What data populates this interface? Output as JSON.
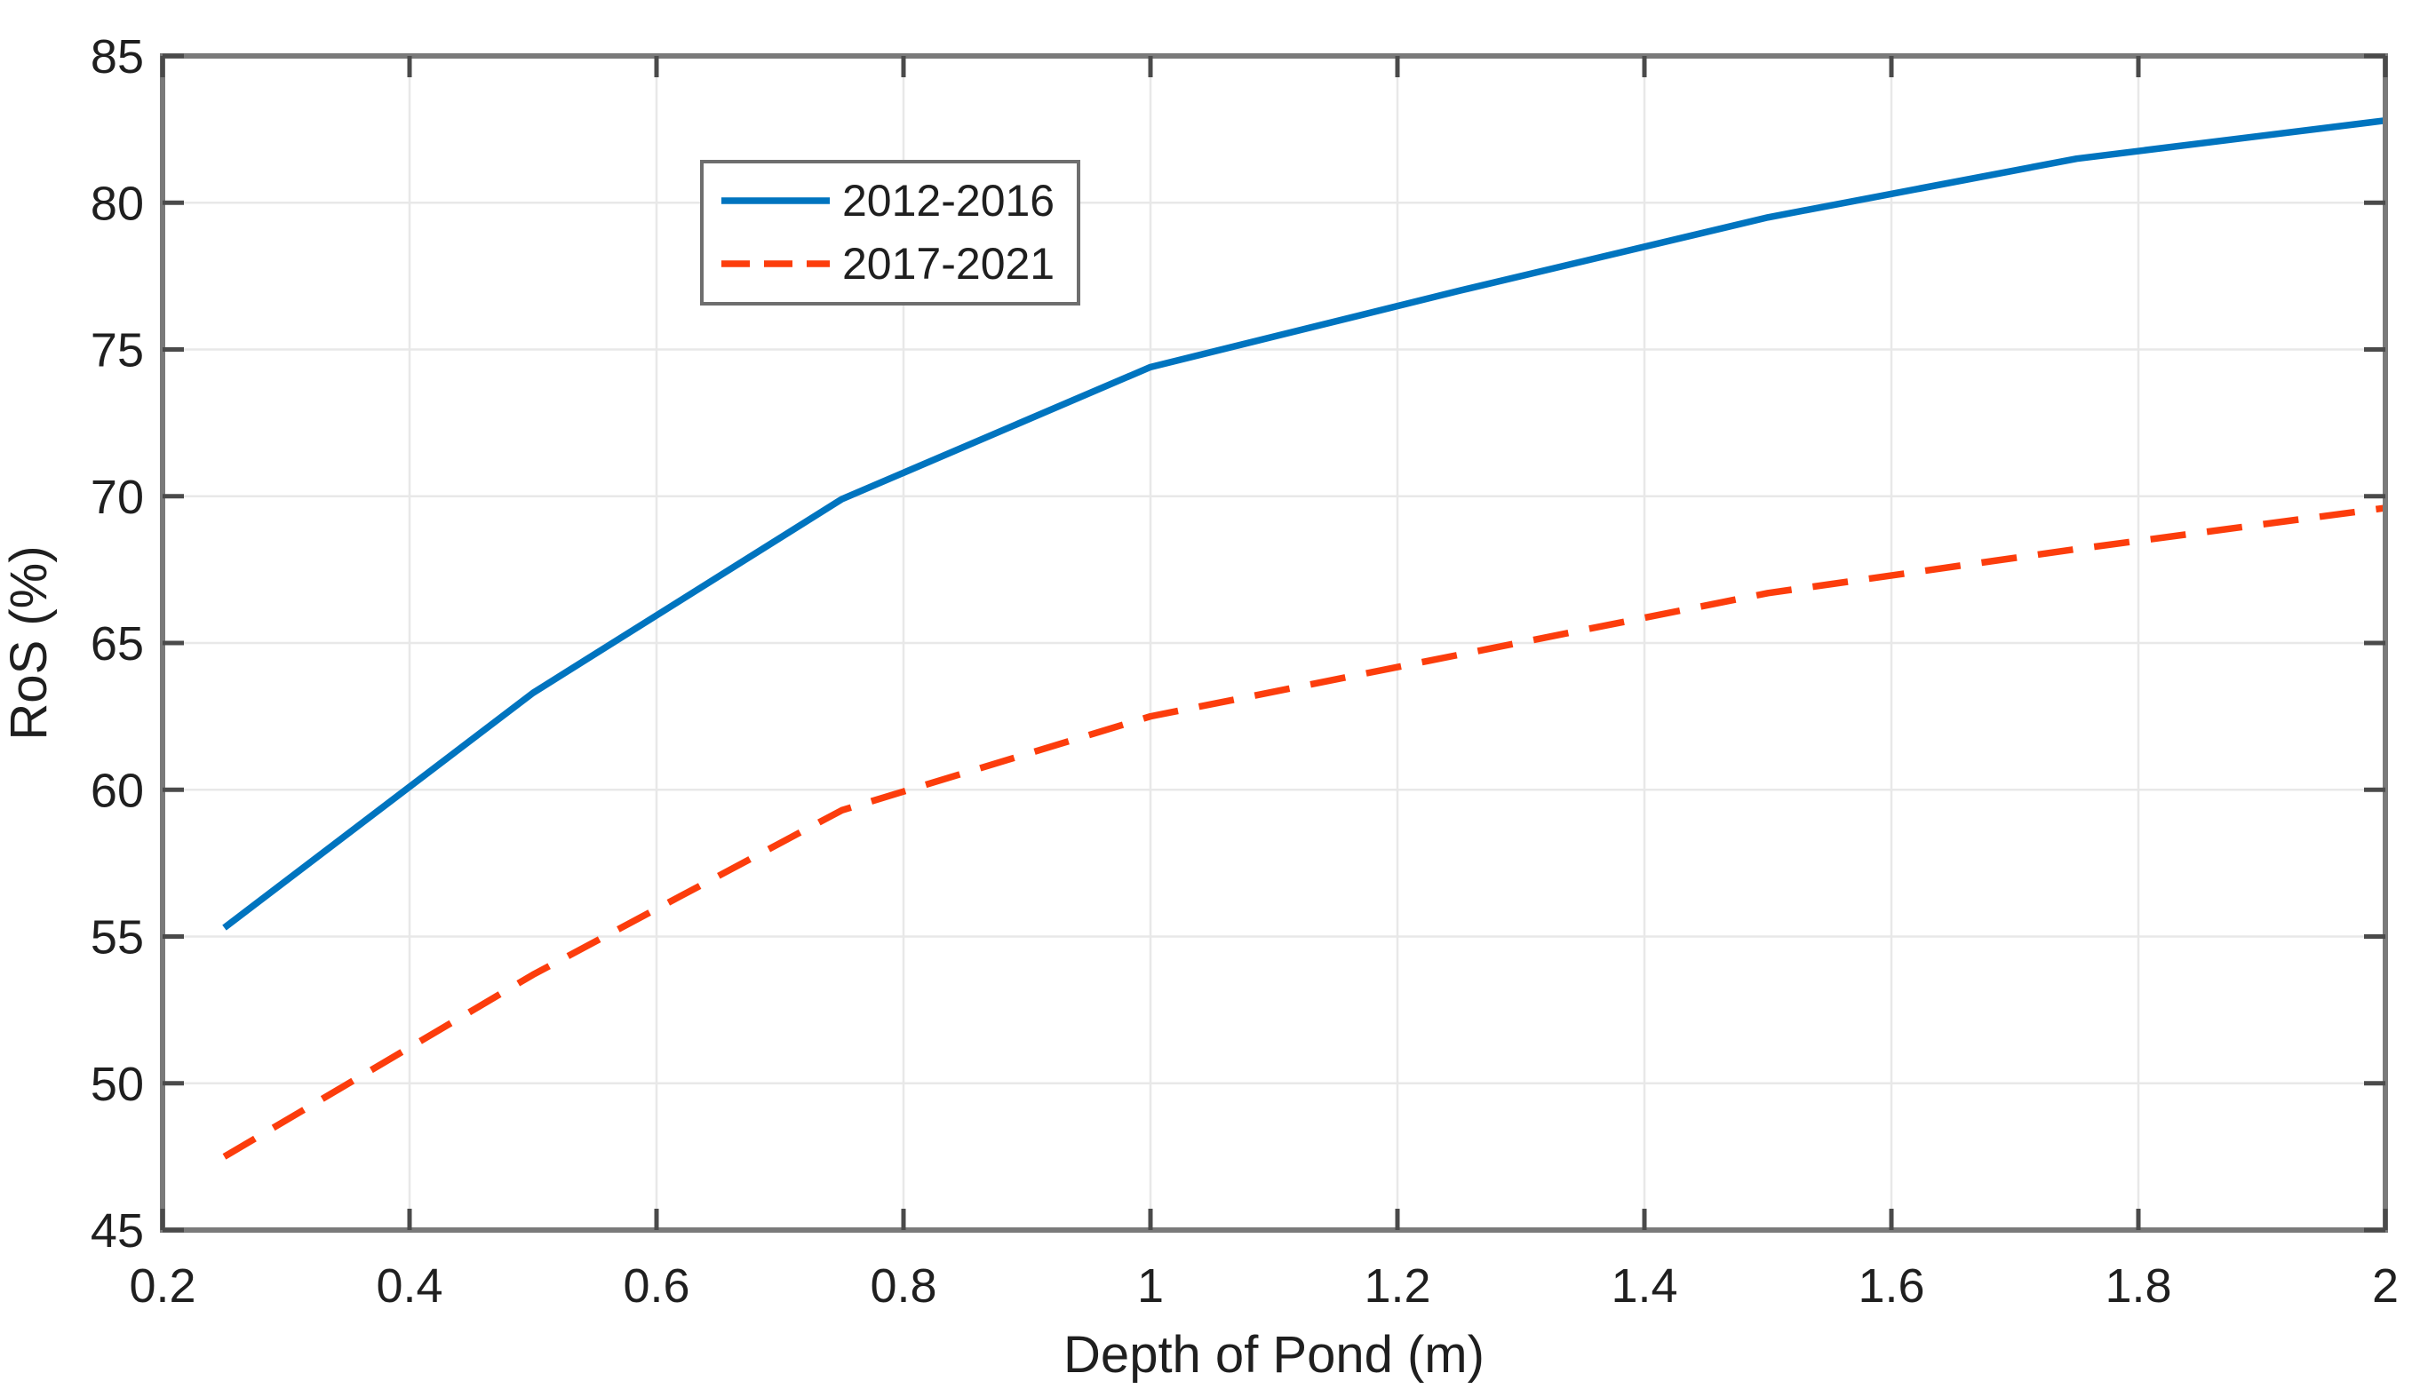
{
  "chart_data": {
    "type": "line",
    "x": [
      0.25,
      0.5,
      0.75,
      1.0,
      1.25,
      1.5,
      1.75,
      2.0
    ],
    "series": [
      {
        "name": "2012-2016",
        "color": "#0074BF",
        "style": "solid",
        "values": [
          55.3,
          63.3,
          69.9,
          74.4,
          77.0,
          79.5,
          81.5,
          82.8
        ]
      },
      {
        "name": "2017-2021",
        "color": "#FC3D0C",
        "style": "dashed",
        "values": [
          47.5,
          53.7,
          59.3,
          62.5,
          64.6,
          66.7,
          68.2,
          69.6
        ]
      }
    ],
    "title": "",
    "xlabel": "Depth of Pond (m)",
    "ylabel": "RoS (%)",
    "xlim": [
      0.2,
      2.0
    ],
    "ylim": [
      45,
      85
    ],
    "xticks": [
      0.2,
      0.4,
      0.6,
      0.8,
      1.0,
      1.2,
      1.4,
      1.6,
      1.8,
      2.0
    ],
    "xtick_labels": [
      "0.2",
      "0.4",
      "0.6",
      "0.8",
      "1",
      "1.2",
      "1.4",
      "1.6",
      "1.8",
      "2"
    ],
    "yticks": [
      45,
      50,
      55,
      60,
      65,
      70,
      75,
      80,
      85
    ],
    "ytick_labels": [
      "45",
      "50",
      "55",
      "60",
      "65",
      "70",
      "75",
      "80",
      "85"
    ],
    "grid": true,
    "legend_position": "upper-left-inset",
    "colors": {
      "background": "#ffffff",
      "grid": "#E8E8E8",
      "axis_box": "#7a7a7a",
      "tick_mark": "#4a4a4a",
      "text": "#1f1f1f",
      "legend_border": "#6e6e6e"
    }
  }
}
